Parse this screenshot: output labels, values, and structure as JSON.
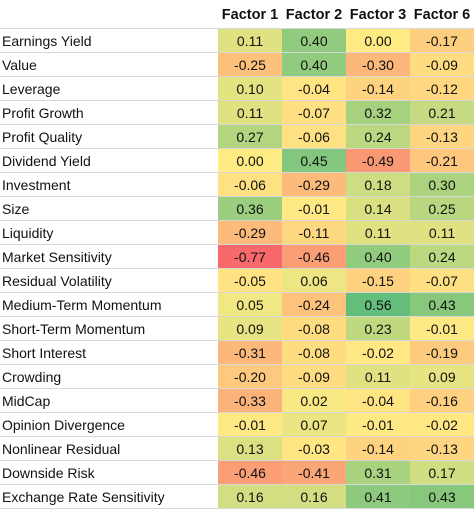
{
  "chart_data": {
    "type": "heatmap",
    "columns": [
      "Factor 1",
      "Factor 2",
      "Factor 3",
      "Factor 6"
    ],
    "rows": [
      {
        "label": "Earnings Yield",
        "values": [
          0.11,
          0.4,
          0.0,
          -0.17
        ],
        "display": [
          "0.11",
          "0.40",
          "0.00",
          "-0.17"
        ]
      },
      {
        "label": "Value",
        "values": [
          -0.25,
          0.4,
          -0.3,
          -0.09
        ],
        "display": [
          "-0.25",
          "0.40",
          "-0.30",
          "-0.09"
        ]
      },
      {
        "label": "Leverage",
        "values": [
          0.1,
          -0.04,
          -0.14,
          -0.12
        ],
        "display": [
          "0.10",
          "-0.04",
          "-0.14",
          "-0.12"
        ]
      },
      {
        "label": "Profit Growth",
        "values": [
          0.11,
          -0.07,
          0.32,
          0.21
        ],
        "display": [
          "0.11",
          "-0.07",
          "0.32",
          "0.21"
        ]
      },
      {
        "label": "Profit Quality",
        "values": [
          0.27,
          -0.06,
          0.24,
          -0.13
        ],
        "display": [
          "0.27",
          "-0.06",
          "0.24",
          "-0.13"
        ]
      },
      {
        "label": "Dividend Yield",
        "values": [
          0.0,
          0.45,
          -0.49,
          -0.21
        ],
        "display": [
          "0.00",
          "0.45",
          "-0.49",
          "-0.21"
        ]
      },
      {
        "label": "Investment",
        "values": [
          -0.06,
          -0.29,
          0.18,
          0.3
        ],
        "display": [
          "-0.06",
          "-0.29",
          "0.18",
          "0.30"
        ]
      },
      {
        "label": "Size",
        "values": [
          0.36,
          -0.01,
          0.14,
          0.25
        ],
        "display": [
          "0.36",
          "-0.01",
          "0.14",
          "0.25"
        ]
      },
      {
        "label": "Liquidity",
        "values": [
          -0.29,
          -0.11,
          0.11,
          0.11
        ],
        "display": [
          "-0.29",
          "-0.11",
          "0.11",
          "0.11"
        ]
      },
      {
        "label": "Market Sensitivity",
        "values": [
          -0.77,
          -0.46,
          0.4,
          0.24
        ],
        "display": [
          "-0.77",
          "-0.46",
          "0.40",
          "0.24"
        ]
      },
      {
        "label": "Residual Volatility",
        "values": [
          -0.05,
          0.06,
          -0.15,
          -0.07
        ],
        "display": [
          "-0.05",
          "0.06",
          "-0.15",
          "-0.07"
        ]
      },
      {
        "label": "Medium-Term Momentum",
        "values": [
          0.05,
          -0.24,
          0.56,
          0.43
        ],
        "display": [
          "0.05",
          "-0.24",
          "0.56",
          "0.43"
        ]
      },
      {
        "label": "Short-Term Momentum",
        "values": [
          0.09,
          -0.08,
          0.23,
          -0.01
        ],
        "display": [
          "0.09",
          "-0.08",
          "0.23",
          "-0.01"
        ]
      },
      {
        "label": "Short Interest",
        "values": [
          -0.31,
          -0.08,
          -0.02,
          -0.19
        ],
        "display": [
          "-0.31",
          "-0.08",
          "-0.02",
          "-0.19"
        ]
      },
      {
        "label": "Crowding",
        "values": [
          -0.2,
          -0.09,
          0.11,
          0.09
        ],
        "display": [
          "-0.20",
          "-0.09",
          "0.11",
          "0.09"
        ]
      },
      {
        "label": "MidCap",
        "values": [
          -0.33,
          0.02,
          -0.04,
          -0.16
        ],
        "display": [
          "-0.33",
          "0.02",
          "-0.04",
          "-0.16"
        ]
      },
      {
        "label": "Opinion Divergence",
        "values": [
          -0.01,
          0.07,
          -0.01,
          -0.02
        ],
        "display": [
          "-0.01",
          "0.07",
          "-0.01",
          "-0.02"
        ]
      },
      {
        "label": "Nonlinear Residual",
        "values": [
          0.13,
          -0.03,
          -0.14,
          -0.13
        ],
        "display": [
          "0.13",
          "-0.03",
          "-0.14",
          "-0.13"
        ]
      },
      {
        "label": "Downside Risk",
        "values": [
          -0.46,
          -0.41,
          0.31,
          0.17
        ],
        "display": [
          "-0.46",
          "-0.41",
          "0.31",
          "0.17"
        ]
      },
      {
        "label": "Exchange Rate Sensitivity",
        "values": [
          0.16,
          0.16,
          0.41,
          0.43
        ],
        "display": [
          "0.16",
          "0.16",
          "0.41",
          "0.43"
        ]
      }
    ],
    "color_scale": {
      "low": "#f8696b",
      "mid": "#ffeb84",
      "high": "#63be7b"
    },
    "value_range": [
      -0.77,
      0.56
    ]
  }
}
